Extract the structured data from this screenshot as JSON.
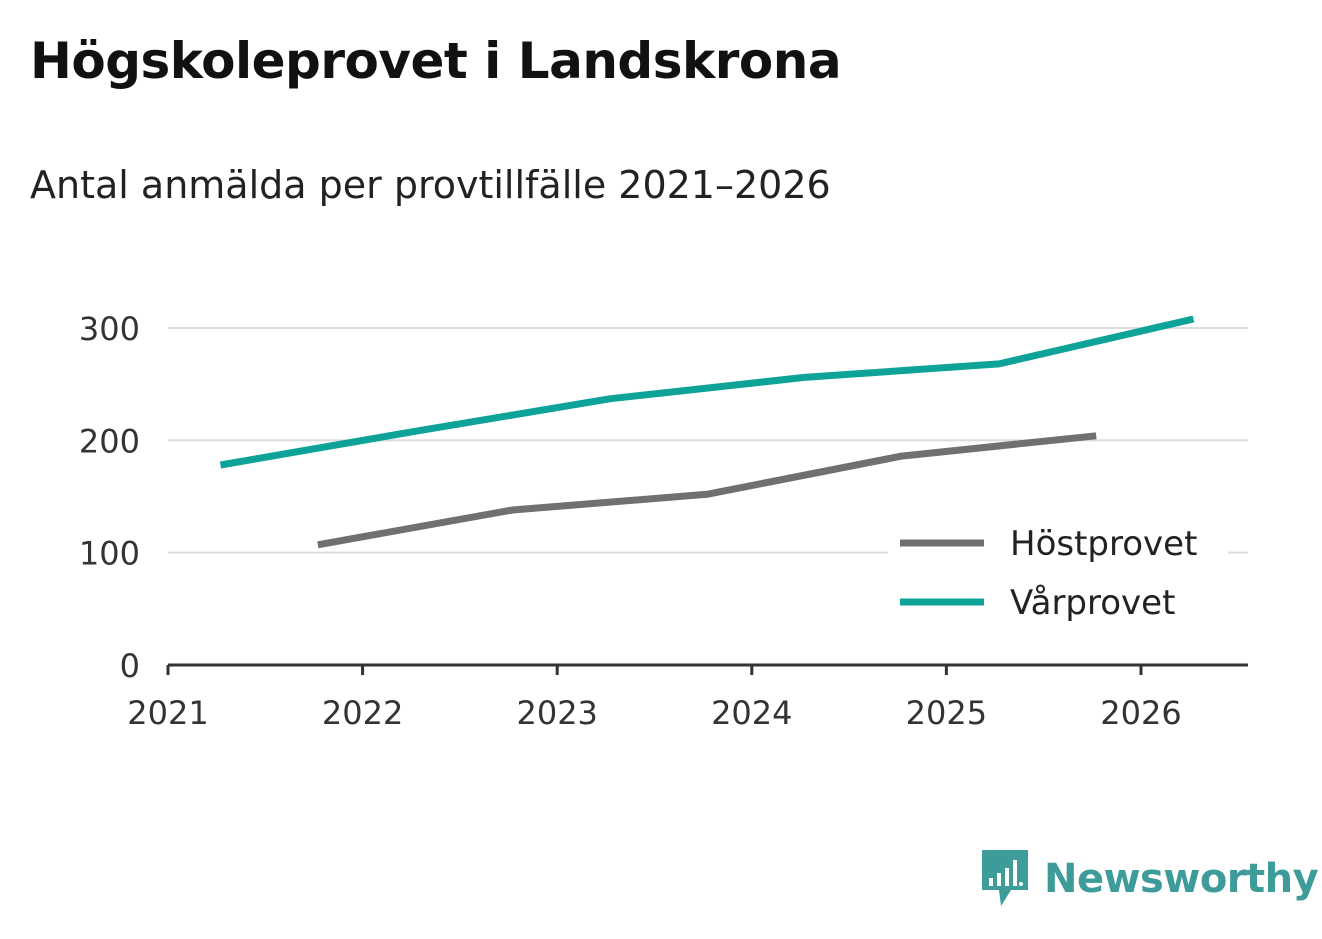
{
  "title": "Högskoleprovet i Landskrona",
  "subtitle": "Antal anmälda per provtillfälle 2021–2026",
  "brand": {
    "name": "Newsworthy",
    "color": "#3d9c99"
  },
  "chart_data": {
    "type": "line",
    "title": "Högskoleprovet i Landskrona",
    "subtitle": "Antal anmälda per provtillfälle 2021–2026",
    "xlabel": "",
    "ylabel": "",
    "xlim": [
      2021,
      2026.55
    ],
    "ylim": [
      0,
      300
    ],
    "x_ticks": [
      "2021",
      "2022",
      "2023",
      "2024",
      "2025",
      "2026"
    ],
    "y_ticks": [
      "0",
      "100",
      "200",
      "300"
    ],
    "grid": true,
    "legend_position": "bottom-right",
    "series": [
      {
        "name": "Höstprovet",
        "color": "#707070",
        "x": [
          2021.77,
          2022.77,
          2023.77,
          2024.77,
          2025.77
        ],
        "values": [
          107,
          138,
          152,
          186,
          204
        ]
      },
      {
        "name": "Vårprovet",
        "color": "#0ea398",
        "x": [
          2021.27,
          2022.27,
          2023.27,
          2024.27,
          2025.27,
          2026.27
        ],
        "values": [
          178,
          208,
          237,
          256,
          268,
          308
        ]
      }
    ]
  }
}
